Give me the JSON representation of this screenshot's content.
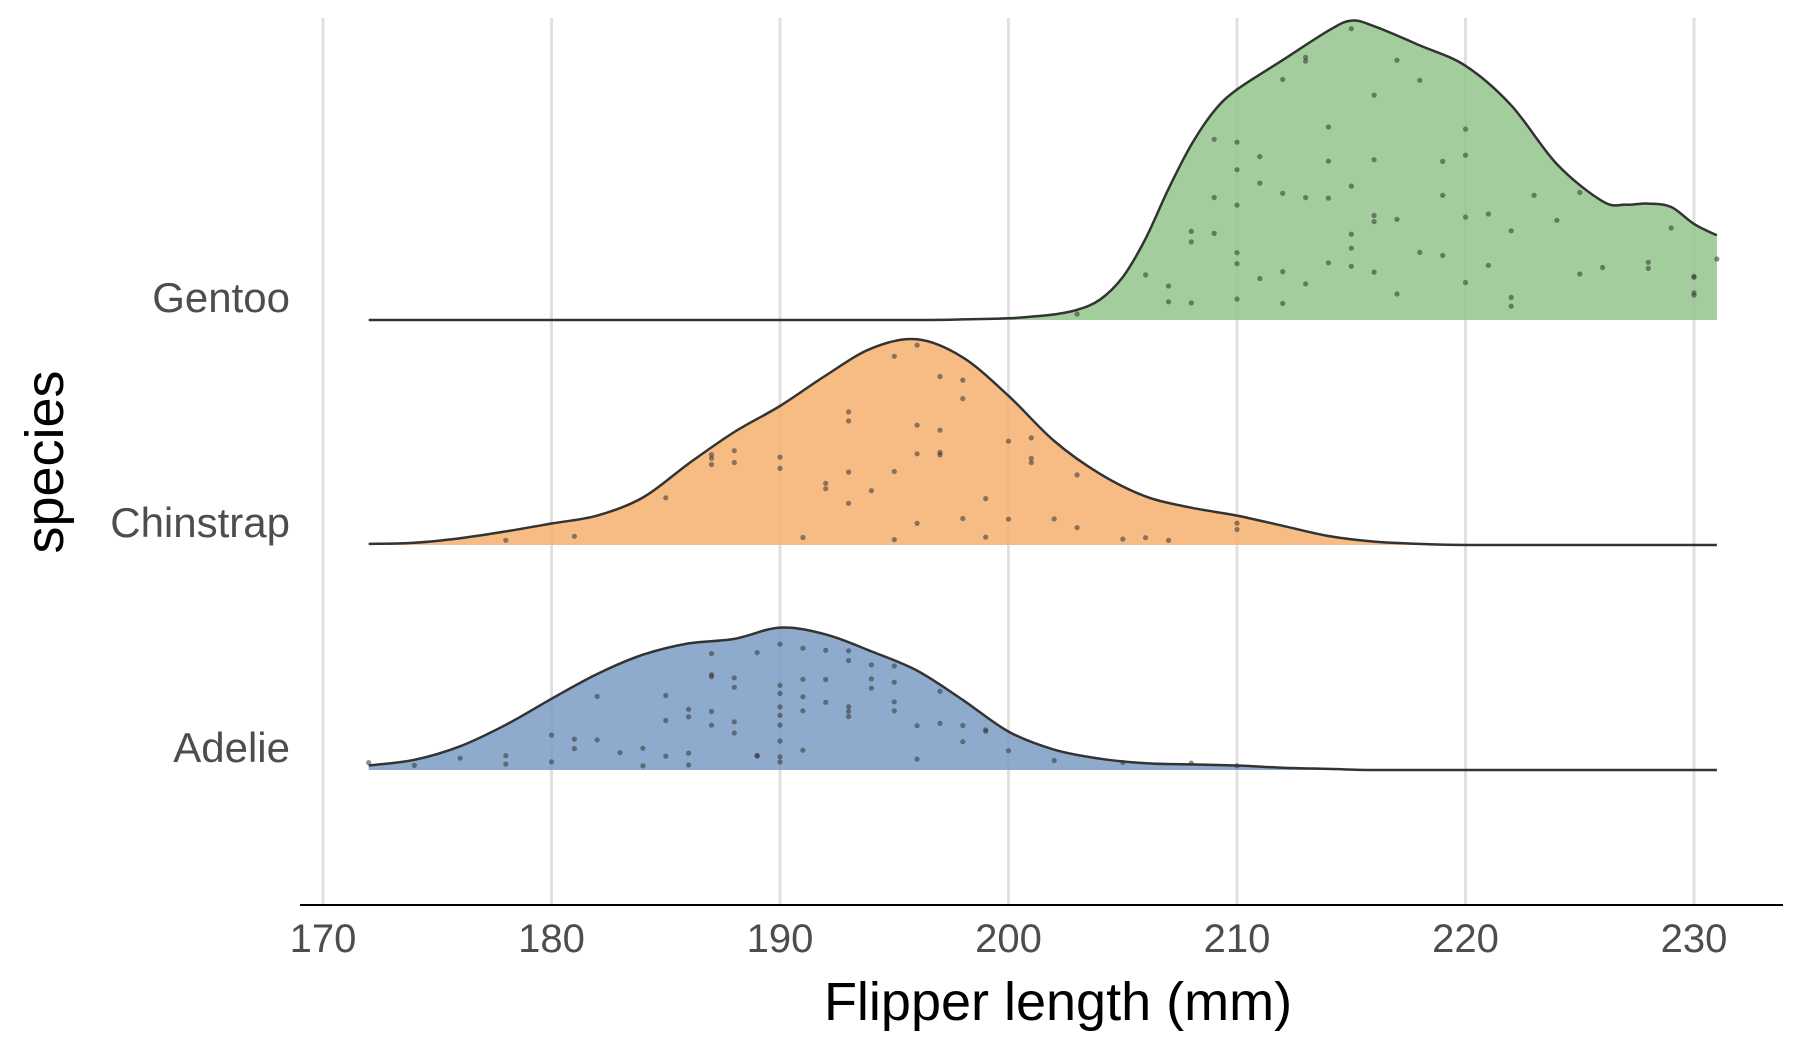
{
  "chart_data": {
    "type": "ridgeline",
    "xlabel": "Flipper length (mm)",
    "ylabel": "species",
    "xlim": [
      170,
      233
    ],
    "x_ticks": [
      170,
      180,
      190,
      200,
      210,
      220,
      230
    ],
    "x_tick_labels": [
      "170",
      "180",
      "190",
      "200",
      "210",
      "220",
      "230"
    ],
    "grid": "vertical",
    "legend": "none",
    "categories": [
      "Gentoo",
      "Chinstrap",
      "Adelie"
    ],
    "series": [
      {
        "name": "Adelie",
        "color": "#7a9cc4",
        "density_x": [
          172,
          174,
          176,
          178,
          180,
          182,
          184,
          186,
          188,
          190,
          192,
          194,
          196,
          198,
          200,
          202,
          204,
          206,
          208,
          210,
          212,
          214,
          216,
          220,
          225,
          231
        ],
        "density_rel": [
          0.04,
          0.09,
          0.21,
          0.4,
          0.63,
          0.85,
          1.02,
          1.12,
          1.16,
          1.26,
          1.2,
          1.05,
          0.88,
          0.62,
          0.34,
          0.18,
          0.1,
          0.06,
          0.05,
          0.04,
          0.02,
          0.01,
          0.0,
          0.0,
          0.0,
          0.0
        ],
        "points": [
          172,
          174,
          176,
          178,
          178,
          180,
          180,
          181,
          181,
          182,
          182,
          183,
          184,
          184,
          185,
          185,
          185,
          186,
          186,
          186,
          186,
          187,
          187,
          187,
          187,
          187,
          188,
          188,
          188,
          188,
          189,
          189,
          189,
          190,
          190,
          190,
          190,
          190,
          190,
          190,
          190,
          190,
          191,
          191,
          191,
          191,
          191,
          192,
          192,
          192,
          193,
          193,
          193,
          193,
          193,
          194,
          194,
          194,
          195,
          195,
          195,
          195,
          196,
          196,
          197,
          197,
          198,
          198,
          199,
          199,
          200,
          202,
          205,
          208,
          210
        ]
      },
      {
        "name": "Chinstrap",
        "color": "#f5b06e",
        "density_x": [
          172,
          174,
          176,
          178,
          180,
          182,
          184,
          186,
          188,
          190,
          192,
          194,
          196,
          198,
          200,
          202,
          204,
          206,
          208,
          210,
          212,
          214,
          216,
          218,
          220,
          225,
          231
        ],
        "density_rel": [
          0.01,
          0.02,
          0.06,
          0.12,
          0.19,
          0.26,
          0.42,
          0.72,
          1.0,
          1.23,
          1.5,
          1.74,
          1.82,
          1.66,
          1.32,
          0.92,
          0.63,
          0.43,
          0.33,
          0.26,
          0.17,
          0.08,
          0.03,
          0.01,
          0.0,
          0.0,
          0.0
        ],
        "points": [
          178,
          181,
          185,
          187,
          187,
          187,
          188,
          188,
          190,
          190,
          191,
          192,
          192,
          193,
          193,
          193,
          193,
          194,
          195,
          195,
          195,
          196,
          196,
          196,
          196,
          197,
          197,
          197,
          197,
          198,
          198,
          198,
          199,
          199,
          200,
          200,
          201,
          201,
          201,
          202,
          203,
          203,
          205,
          206,
          207,
          210,
          210
        ]
      },
      {
        "name": "Gentoo",
        "color": "#93c48b",
        "density_x": [
          172,
          180,
          190,
          196,
          198,
          200,
          201,
          202,
          203,
          204,
          205,
          206,
          207,
          208,
          209,
          210,
          212,
          214,
          215,
          216,
          218,
          220,
          222,
          224,
          226,
          227,
          228,
          229,
          230,
          231
        ],
        "density_rel": [
          0.0,
          0.0,
          0.0,
          0.0,
          0.005,
          0.015,
          0.03,
          0.05,
          0.09,
          0.18,
          0.38,
          0.72,
          1.16,
          1.55,
          1.85,
          2.04,
          2.3,
          2.56,
          2.65,
          2.6,
          2.43,
          2.25,
          1.9,
          1.38,
          1.05,
          1.02,
          1.03,
          1.0,
          0.85,
          0.75
        ],
        "points": [
          203,
          206,
          207,
          207,
          208,
          208,
          208,
          209,
          209,
          209,
          210,
          210,
          210,
          210,
          210,
          210,
          211,
          211,
          211,
          212,
          212,
          212,
          212,
          213,
          213,
          213,
          213,
          214,
          214,
          214,
          214,
          215,
          215,
          215,
          215,
          215,
          216,
          216,
          216,
          216,
          216,
          217,
          217,
          217,
          218,
          218,
          219,
          219,
          219,
          220,
          220,
          220,
          220,
          221,
          221,
          222,
          222,
          222,
          223,
          224,
          225,
          225,
          226,
          228,
          228,
          229,
          230,
          230,
          230,
          230,
          231
        ]
      }
    ]
  }
}
